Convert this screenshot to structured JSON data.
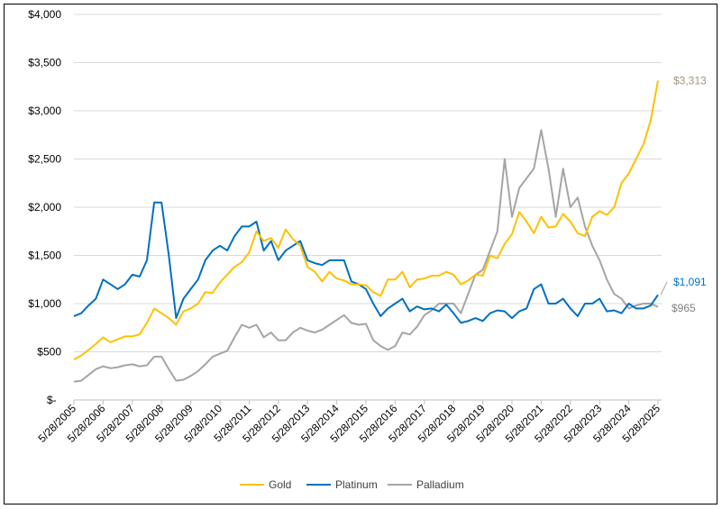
{
  "chart_data": {
    "type": "line",
    "title": "",
    "xlabel": "",
    "ylabel": "",
    "ylim": [
      0,
      4000
    ],
    "y_ticks": [
      "$-",
      "$500",
      "$1,000",
      "$1,500",
      "$2,000",
      "$2,500",
      "$3,000",
      "$3,500",
      "$4,000"
    ],
    "x_ticks": [
      "5/28/2005",
      "5/28/2006",
      "5/28/2007",
      "5/28/2008",
      "5/28/2009",
      "5/28/2010",
      "5/28/2011",
      "5/28/2012",
      "5/28/2013",
      "5/28/2014",
      "5/28/2015",
      "5/28/2016",
      "5/28/2017",
      "5/28/2018",
      "5/28/2019",
      "5/28/2020",
      "5/28/2021",
      "5/28/2022",
      "5/28/2023",
      "5/28/2024",
      "5/28/2025"
    ],
    "grid": "horizontal",
    "legend": "bottom",
    "x": [
      "2005-05",
      "2005-08",
      "2005-11",
      "2006-02",
      "2006-05",
      "2006-08",
      "2006-11",
      "2007-02",
      "2007-05",
      "2007-08",
      "2007-11",
      "2008-02",
      "2008-05",
      "2008-08",
      "2008-11",
      "2009-02",
      "2009-05",
      "2009-08",
      "2009-11",
      "2010-02",
      "2010-05",
      "2010-08",
      "2010-11",
      "2011-02",
      "2011-05",
      "2011-08",
      "2011-11",
      "2012-02",
      "2012-05",
      "2012-08",
      "2012-11",
      "2013-02",
      "2013-05",
      "2013-08",
      "2013-11",
      "2014-02",
      "2014-05",
      "2014-08",
      "2014-11",
      "2015-02",
      "2015-05",
      "2015-08",
      "2015-11",
      "2016-02",
      "2016-05",
      "2016-08",
      "2016-11",
      "2017-02",
      "2017-05",
      "2017-08",
      "2017-11",
      "2018-02",
      "2018-05",
      "2018-08",
      "2018-11",
      "2019-02",
      "2019-05",
      "2019-08",
      "2019-11",
      "2020-02",
      "2020-05",
      "2020-08",
      "2020-11",
      "2021-02",
      "2021-05",
      "2021-08",
      "2021-11",
      "2022-02",
      "2022-05",
      "2022-08",
      "2022-11",
      "2023-02",
      "2023-05",
      "2023-08",
      "2023-11",
      "2024-02",
      "2024-05",
      "2024-08",
      "2024-11",
      "2025-02",
      "2025-05"
    ],
    "series": [
      {
        "name": "Gold",
        "color": "#FFC000",
        "end_label": "$3,313",
        "end_label_color": "#A0937A",
        "values": [
          420,
          460,
          520,
          580,
          650,
          600,
          630,
          660,
          660,
          680,
          800,
          950,
          900,
          850,
          780,
          920,
          950,
          1000,
          1120,
          1110,
          1220,
          1300,
          1380,
          1430,
          1530,
          1750,
          1650,
          1680,
          1580,
          1770,
          1670,
          1600,
          1380,
          1330,
          1230,
          1330,
          1260,
          1240,
          1200,
          1200,
          1190,
          1120,
          1080,
          1250,
          1250,
          1330,
          1170,
          1250,
          1260,
          1290,
          1290,
          1330,
          1300,
          1200,
          1240,
          1300,
          1290,
          1500,
          1470,
          1620,
          1720,
          1950,
          1850,
          1730,
          1900,
          1790,
          1800,
          1930,
          1850,
          1730,
          1700,
          1900,
          1960,
          1920,
          2000,
          2250,
          2350,
          2500,
          2650,
          2900,
          3313
        ]
      },
      {
        "name": "Platinum",
        "color": "#0070C0",
        "end_label": "$1,091",
        "end_label_color": "#0070C0",
        "values": [
          870,
          900,
          980,
          1050,
          1250,
          1200,
          1150,
          1200,
          1300,
          1280,
          1450,
          2050,
          2050,
          1500,
          850,
          1050,
          1150,
          1250,
          1450,
          1550,
          1600,
          1550,
          1700,
          1800,
          1800,
          1850,
          1550,
          1650,
          1450,
          1550,
          1600,
          1650,
          1450,
          1420,
          1400,
          1450,
          1450,
          1450,
          1230,
          1200,
          1150,
          1000,
          870,
          950,
          1000,
          1050,
          920,
          970,
          940,
          950,
          920,
          990,
          900,
          800,
          820,
          850,
          820,
          900,
          930,
          920,
          850,
          920,
          950,
          1150,
          1200,
          1000,
          1000,
          1050,
          950,
          870,
          1000,
          1000,
          1050,
          920,
          930,
          900,
          1000,
          950,
          950,
          980,
          1091
        ]
      },
      {
        "name": "Palladium",
        "color": "#A5A5A5",
        "end_label": "$965",
        "end_label_color": "#808080",
        "values": [
          190,
          200,
          260,
          320,
          350,
          330,
          340,
          360,
          370,
          350,
          360,
          450,
          450,
          320,
          200,
          210,
          250,
          300,
          370,
          450,
          480,
          510,
          650,
          780,
          750,
          780,
          650,
          700,
          620,
          620,
          700,
          750,
          720,
          700,
          730,
          780,
          830,
          880,
          800,
          780,
          790,
          620,
          560,
          520,
          560,
          700,
          680,
          760,
          880,
          930,
          1000,
          1000,
          1000,
          900,
          1100,
          1300,
          1350,
          1550,
          1750,
          2500,
          1900,
          2200,
          2300,
          2400,
          2800,
          2400,
          1900,
          2400,
          2000,
          2100,
          1800,
          1600,
          1450,
          1250,
          1100,
          1050,
          950,
          980,
          1000,
          1000,
          965
        ]
      }
    ]
  }
}
